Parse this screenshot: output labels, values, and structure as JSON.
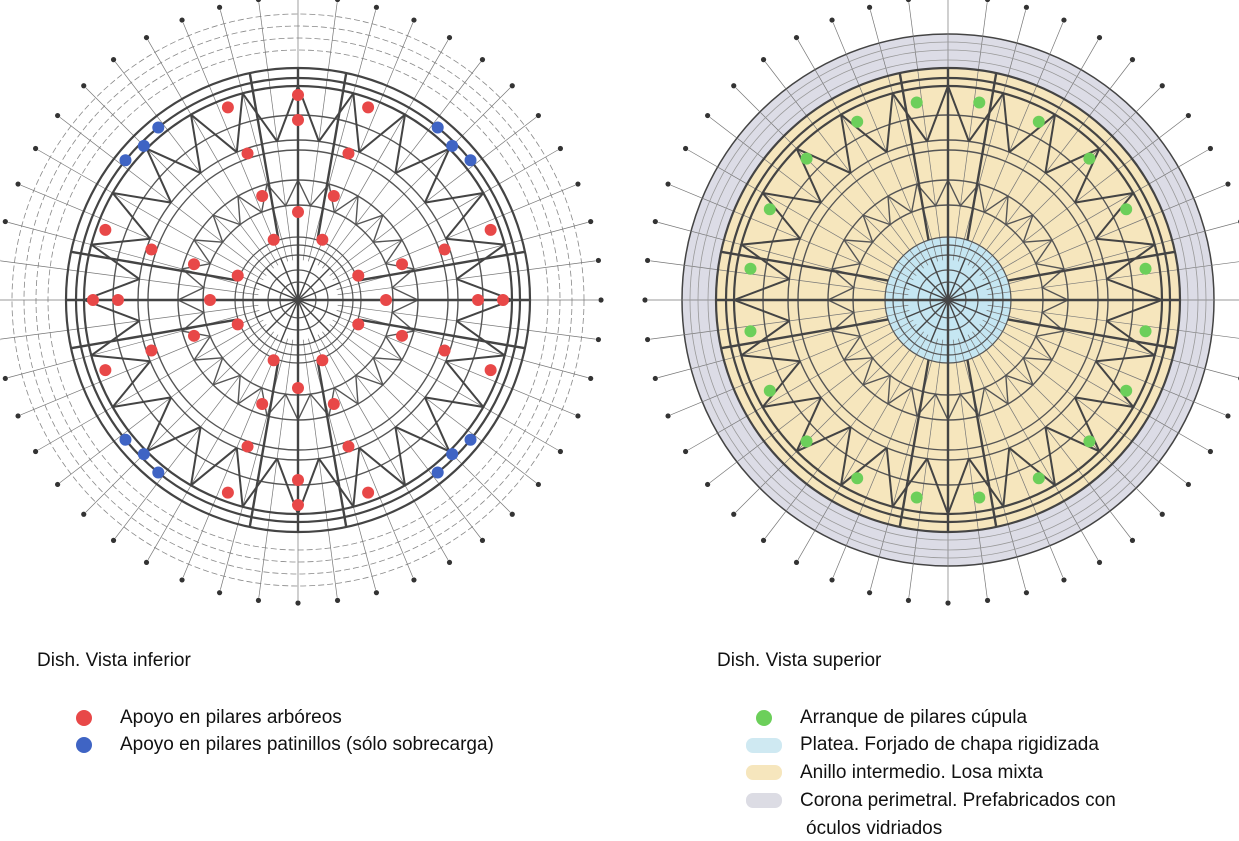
{
  "left": {
    "title": "Dish. Vista inferior",
    "legend": [
      "Apoyo en pilares arbóreos",
      "Apoyo en pilares patinillos (sólo sobrecarga)"
    ]
  },
  "right": {
    "title": "Dish. Vista superior",
    "legend": [
      "Arranque de pilares cúpula",
      "Platea. Forjado de chapa rigidizada",
      "Anillo intermedio. Losa mixta",
      "Corona perimetral. Prefabricados con",
      "óculos vidriados"
    ]
  }
}
